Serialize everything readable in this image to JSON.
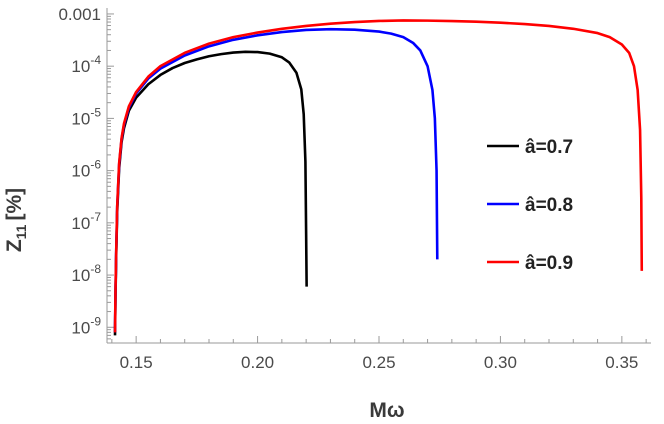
{
  "chart_data": {
    "type": "line",
    "title": "",
    "xlabel": "Mω",
    "ylabel": "Z",
    "ylabel_subscript": "11",
    "ylabel_unit": "[%]",
    "xlim": [
      0.138,
      0.362
    ],
    "ylim": [
      5e-10,
      0.0013
    ],
    "yscale": "log",
    "grid": false,
    "legend_position": "right",
    "x_ticks": [
      {
        "value": 0.15,
        "label": "0.15"
      },
      {
        "value": 0.2,
        "label": "0.20"
      },
      {
        "value": 0.25,
        "label": "0.25"
      },
      {
        "value": 0.3,
        "label": "0.30"
      },
      {
        "value": 0.35,
        "label": "0.35"
      }
    ],
    "y_ticks": [
      {
        "value": 1e-09,
        "base": "10",
        "exp": "-9"
      },
      {
        "value": 1e-08,
        "base": "10",
        "exp": "-8"
      },
      {
        "value": 1e-07,
        "base": "10",
        "exp": "-7"
      },
      {
        "value": 1e-06,
        "base": "10",
        "exp": "-6"
      },
      {
        "value": 1e-05,
        "base": "10",
        "exp": "-5"
      },
      {
        "value": 0.0001,
        "base": "10",
        "exp": "-4"
      },
      {
        "value": 0.001,
        "base": "0.001",
        "exp": ""
      }
    ],
    "series": [
      {
        "name": "â=0.7",
        "color": "#000000",
        "x": [
          0.1413,
          0.1415,
          0.1418,
          0.1422,
          0.143,
          0.144,
          0.145,
          0.147,
          0.15,
          0.155,
          0.16,
          0.165,
          0.17,
          0.175,
          0.18,
          0.185,
          0.19,
          0.195,
          0.2,
          0.205,
          0.21,
          0.213,
          0.216,
          0.218,
          0.219,
          0.2197,
          0.22,
          0.2202
        ],
        "y": [
          7e-10,
          4e-09,
          2.5e-08,
          1.6e-07,
          1.1e-06,
          3.5e-06,
          6.5e-06,
          1.4e-05,
          2.5e-05,
          4.5e-05,
          6.8e-05,
          9.2e-05,
          0.000115,
          0.000135,
          0.000155,
          0.00017,
          0.000182,
          0.000188,
          0.000186,
          0.000174,
          0.000148,
          0.000118,
          7.5e-05,
          3.6e-05,
          1.2e-05,
          1.5e-06,
          6e-08,
          6e-09
        ]
      },
      {
        "name": "â=0.8",
        "color": "#0000ff",
        "x": [
          0.1413,
          0.1415,
          0.1418,
          0.1422,
          0.143,
          0.144,
          0.145,
          0.147,
          0.15,
          0.155,
          0.16,
          0.17,
          0.18,
          0.19,
          0.2,
          0.21,
          0.22,
          0.23,
          0.24,
          0.25,
          0.255,
          0.26,
          0.264,
          0.267,
          0.27,
          0.272,
          0.273,
          0.2737,
          0.274
        ],
        "y": [
          8e-10,
          5e-09,
          3e-08,
          2e-07,
          1.3e-06,
          4e-06,
          7.5e-06,
          1.6e-05,
          3e-05,
          5.8e-05,
          9e-05,
          0.00016,
          0.00024,
          0.00032,
          0.00039,
          0.00045,
          0.000495,
          0.00051,
          0.0005,
          0.00046,
          0.00042,
          0.00036,
          0.00028,
          0.0002,
          0.0001,
          3.5e-05,
          1e-05,
          1e-06,
          2e-08
        ]
      },
      {
        "name": "â=0.9",
        "color": "#ff0000",
        "x": [
          0.1413,
          0.1415,
          0.1418,
          0.1422,
          0.143,
          0.144,
          0.145,
          0.147,
          0.15,
          0.155,
          0.16,
          0.17,
          0.18,
          0.19,
          0.2,
          0.21,
          0.22,
          0.23,
          0.24,
          0.25,
          0.26,
          0.27,
          0.28,
          0.29,
          0.3,
          0.31,
          0.32,
          0.33,
          0.34,
          0.345,
          0.35,
          0.353,
          0.355,
          0.3565,
          0.3575,
          0.358,
          0.3582
        ],
        "y": [
          8e-10,
          5e-09,
          3e-08,
          2.1e-07,
          1.4e-06,
          4.2e-06,
          8e-06,
          1.7e-05,
          3.2e-05,
          6.3e-05,
          0.0001,
          0.00018,
          0.00027,
          0.00036,
          0.00044,
          0.00052,
          0.00059,
          0.00065,
          0.0007,
          0.000735,
          0.00075,
          0.000745,
          0.00073,
          0.00071,
          0.00068,
          0.00064,
          0.00059,
          0.00052,
          0.00043,
          0.00036,
          0.00026,
          0.00018,
          0.0001,
          3.5e-05,
          6e-06,
          3e-07,
          1.2e-08
        ]
      }
    ]
  }
}
